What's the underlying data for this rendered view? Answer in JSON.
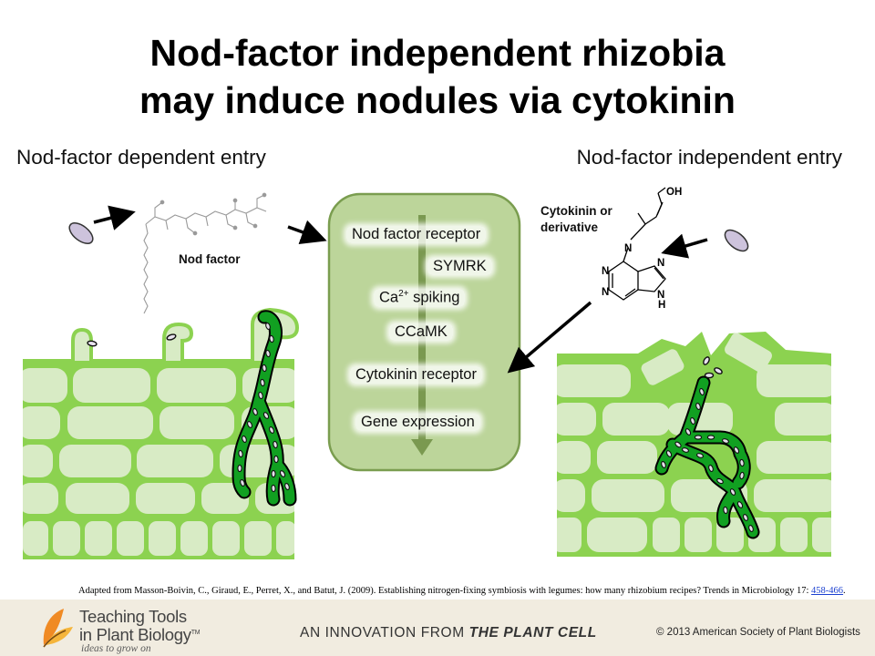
{
  "title": {
    "line1": "Nod-factor independent rhizobia",
    "line2": "may induce nodules via cytokinin"
  },
  "left": {
    "heading": "Nod-factor dependent entry",
    "nod_factor_label": "Nod factor"
  },
  "right": {
    "heading": "Nod-factor independent entry",
    "cytokinin_label_line1": "Cytokinin or",
    "cytokinin_label_line2": "derivative",
    "molecule_atoms": {
      "oh": "OH",
      "n": "N",
      "h": "H"
    }
  },
  "pathway": {
    "steps": [
      {
        "label": "Nod factor receptor"
      },
      {
        "label": "SYMRK"
      },
      {
        "label": "Ca",
        "superscript": "2+",
        "suffix": " spiking"
      },
      {
        "label": "CCaMK"
      },
      {
        "label": "Cytokinin receptor"
      },
      {
        "label": "Gene expression"
      }
    ]
  },
  "citation": {
    "text": "Adapted from Masson-Boivin, C., Giraud, E., Perret, X., and Batut, J. (2009). Establishing nitrogen-fixing symbiosis with legumes: how many rhizobium recipes? Trends in Microbiology 17: ",
    "link_text": "458-466",
    "end": "."
  },
  "footer": {
    "brand_line1": "Teaching Tools",
    "brand_line2": "in Plant Biology",
    "brand_tm": "TM",
    "tagline": "ideas to grow on",
    "innovation_prefix": "AN INNOVATION FROM ",
    "innovation_brand": "THE PLANT CELL",
    "copyright": "© 2013 American Society of Plant Biologists"
  },
  "colors": {
    "tissue": "#8cd250",
    "cell": "#d8ebc5",
    "infection_thread": "#11a021",
    "pathway_box": "#bcd59a",
    "pathway_border": "#7a9d4f",
    "pathway_arrow": "#7a9950",
    "bacterium": "#cdc3dc"
  }
}
